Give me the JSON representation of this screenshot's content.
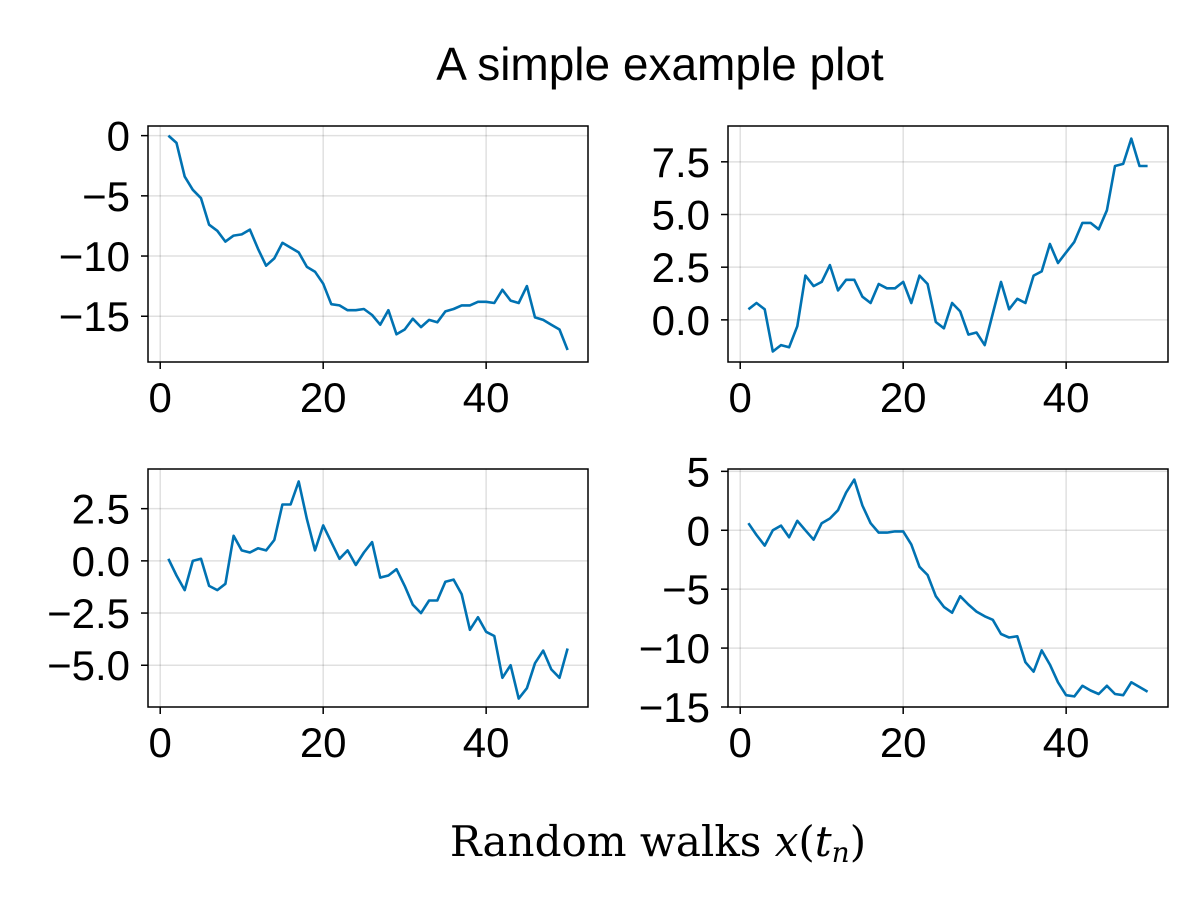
{
  "figure": {
    "title": "A simple example plot",
    "xlabel_prefix": "Random walks ",
    "xlabel_var": "x",
    "xlabel_open": "(",
    "xlabel_t": "t",
    "xlabel_sub": "n",
    "xlabel_close": ")"
  },
  "style": {
    "line_color": "#0072b2",
    "grid": true
  },
  "chart_data": [
    {
      "type": "line",
      "xlim": [
        -1.5,
        52.5
      ],
      "ylim": [
        -18.8,
        0.8
      ],
      "xticks": [
        0,
        20,
        40
      ],
      "xtick_labels": [
        "0",
        "20",
        "40"
      ],
      "yticks": [
        0,
        -5,
        -10,
        -15
      ],
      "ytick_labels": [
        "0",
        "−5",
        "−10",
        "−15"
      ],
      "series": [
        {
          "x": [
            1,
            2,
            3,
            4,
            5,
            6,
            7,
            8,
            9,
            10,
            11,
            12,
            13,
            14,
            15,
            16,
            17,
            18,
            19,
            20,
            21,
            22,
            23,
            24,
            25,
            26,
            27,
            28,
            29,
            30,
            31,
            32,
            33,
            34,
            35,
            36,
            37,
            38,
            39,
            40,
            41,
            42,
            43,
            44,
            45,
            46,
            47,
            48,
            49,
            50
          ],
          "y": [
            0,
            -0.6,
            -3.4,
            -4.5,
            -5.2,
            -7.4,
            -7.9,
            -8.8,
            -8.3,
            -8.2,
            -7.8,
            -9.4,
            -10.8,
            -10.2,
            -8.9,
            -9.3,
            -9.7,
            -10.9,
            -11.3,
            -12.3,
            -14.0,
            -14.1,
            -14.5,
            -14.5,
            -14.4,
            -14.9,
            -15.7,
            -14.5,
            -16.5,
            -16.1,
            -15.2,
            -15.9,
            -15.3,
            -15.5,
            -14.6,
            -14.4,
            -14.1,
            -14.1,
            -13.8,
            -13.8,
            -13.9,
            -12.8,
            -13.7,
            -13.9,
            -12.5,
            -15.1,
            -15.3,
            -15.7,
            -16.1,
            -17.8
          ]
        }
      ]
    },
    {
      "type": "line",
      "xlim": [
        -1.5,
        52.5
      ],
      "ylim": [
        -2.0,
        9.2
      ],
      "xticks": [
        0,
        20,
        40
      ],
      "xtick_labels": [
        "0",
        "20",
        "40"
      ],
      "yticks": [
        0,
        2.5,
        5,
        7.5
      ],
      "ytick_labels": [
        "0.0",
        "2.5",
        "5.0",
        "7.5"
      ],
      "series": [
        {
          "x": [
            1,
            2,
            3,
            4,
            5,
            6,
            7,
            8,
            9,
            10,
            11,
            12,
            13,
            14,
            15,
            16,
            17,
            18,
            19,
            20,
            21,
            22,
            23,
            24,
            25,
            26,
            27,
            28,
            29,
            30,
            31,
            32,
            33,
            34,
            35,
            36,
            37,
            38,
            39,
            40,
            41,
            42,
            43,
            44,
            45,
            46,
            47,
            48,
            49,
            50
          ],
          "y": [
            0.5,
            0.8,
            0.5,
            -1.5,
            -1.2,
            -1.3,
            -0.3,
            2.1,
            1.6,
            1.8,
            2.6,
            1.4,
            1.9,
            1.9,
            1.1,
            0.8,
            1.7,
            1.5,
            1.5,
            1.8,
            0.8,
            2.1,
            1.7,
            -0.1,
            -0.4,
            0.8,
            0.4,
            -0.7,
            -0.6,
            -1.2,
            0.3,
            1.8,
            0.5,
            1.0,
            0.8,
            2.1,
            2.3,
            3.6,
            2.7,
            3.2,
            3.7,
            4.6,
            4.6,
            4.3,
            5.2,
            7.3,
            7.4,
            8.6,
            7.3,
            7.3
          ]
        }
      ]
    },
    {
      "type": "line",
      "xlim": [
        -1.5,
        52.5
      ],
      "ylim": [
        -7.0,
        4.4
      ],
      "xticks": [
        0,
        20,
        40
      ],
      "xtick_labels": [
        "0",
        "20",
        "40"
      ],
      "yticks": [
        2.5,
        0,
        -2.5,
        -5
      ],
      "ytick_labels": [
        "2.5",
        "0.0",
        "−2.5",
        "−5.0"
      ],
      "series": [
        {
          "x": [
            1,
            2,
            3,
            4,
            5,
            6,
            7,
            8,
            9,
            10,
            11,
            12,
            13,
            14,
            15,
            16,
            17,
            18,
            19,
            20,
            21,
            22,
            23,
            24,
            25,
            26,
            27,
            28,
            29,
            30,
            31,
            32,
            33,
            34,
            35,
            36,
            37,
            38,
            39,
            40,
            41,
            42,
            43,
            44,
            45,
            46,
            47,
            48,
            49,
            50
          ],
          "y": [
            0.1,
            -0.7,
            -1.4,
            0.0,
            0.1,
            -1.2,
            -1.4,
            -1.1,
            1.2,
            0.5,
            0.4,
            0.6,
            0.5,
            1.0,
            2.7,
            2.7,
            3.8,
            2.0,
            0.5,
            1.7,
            0.9,
            0.1,
            0.5,
            -0.2,
            0.4,
            0.9,
            -0.8,
            -0.7,
            -0.4,
            -1.2,
            -2.1,
            -2.5,
            -1.9,
            -1.9,
            -1.0,
            -0.9,
            -1.6,
            -3.3,
            -2.7,
            -3.4,
            -3.6,
            -5.6,
            -5.0,
            -6.6,
            -6.1,
            -4.9,
            -4.3,
            -5.2,
            -5.6,
            -4.2
          ]
        }
      ]
    },
    {
      "type": "line",
      "xlim": [
        -1.5,
        52.5
      ],
      "ylim": [
        -15,
        5.2
      ],
      "xticks": [
        0,
        20,
        40
      ],
      "xtick_labels": [
        "0",
        "20",
        "40"
      ],
      "yticks": [
        5,
        0,
        -5,
        -10,
        -15
      ],
      "ytick_labels": [
        "5",
        "0",
        "−5",
        "−10",
        "−15"
      ],
      "series": [
        {
          "x": [
            1,
            2,
            3,
            4,
            5,
            6,
            7,
            8,
            9,
            10,
            11,
            12,
            13,
            14,
            15,
            16,
            17,
            18,
            19,
            20,
            21,
            22,
            23,
            24,
            25,
            26,
            27,
            28,
            29,
            30,
            31,
            32,
            33,
            34,
            35,
            36,
            37,
            38,
            39,
            40,
            41,
            42,
            43,
            44,
            45,
            46,
            47,
            48,
            49,
            50
          ],
          "y": [
            0.6,
            -0.4,
            -1.3,
            0.0,
            0.4,
            -0.6,
            0.8,
            0.0,
            -0.8,
            0.6,
            1.0,
            1.7,
            3.2,
            4.3,
            2.1,
            0.6,
            -0.2,
            -0.2,
            -0.1,
            -0.1,
            -1.2,
            -3.1,
            -3.8,
            -5.6,
            -6.5,
            -7.0,
            -5.6,
            -6.3,
            -6.9,
            -7.3,
            -7.6,
            -8.8,
            -9.1,
            -9.0,
            -11.2,
            -12.0,
            -10.2,
            -11.4,
            -12.9,
            -14.0,
            -14.1,
            -13.2,
            -13.6,
            -13.9,
            -13.2,
            -13.9,
            -14.0,
            -12.9,
            -13.3,
            -13.7
          ]
        }
      ]
    }
  ]
}
